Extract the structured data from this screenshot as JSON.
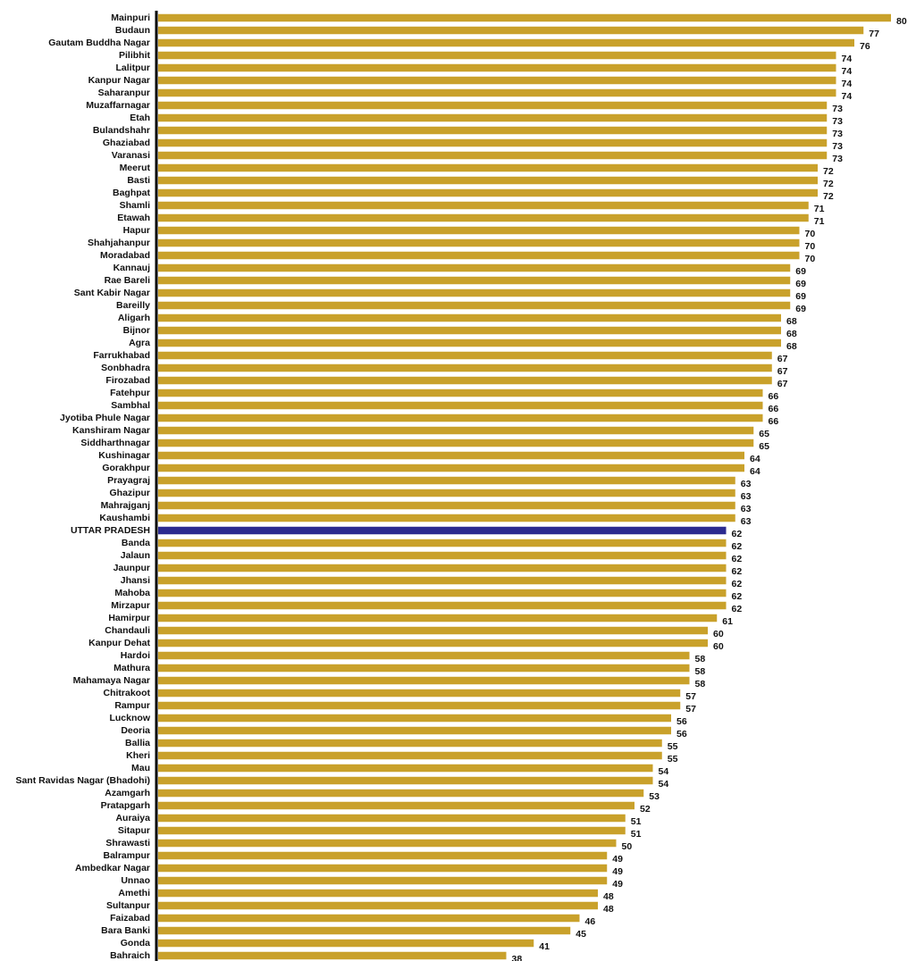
{
  "chart_data": {
    "type": "barh",
    "categories": [
      "Mainpuri",
      "Budaun",
      "Gautam Buddha Nagar",
      "Pilibhit",
      "Lalitpur",
      "Kanpur Nagar",
      "Saharanpur",
      "Muzaffarnagar",
      "Etah",
      "Bulandshahr",
      "Ghaziabad",
      "Varanasi",
      "Meerut",
      "Basti",
      "Baghpat",
      "Shamli",
      "Etawah",
      "Hapur",
      "Shahjahanpur",
      "Moradabad",
      "Kannauj",
      "Rae Bareli",
      "Sant Kabir Nagar",
      "Bareilly",
      "Aligarh",
      "Bijnor",
      "Agra",
      "Farrukhabad",
      "Sonbhadra",
      "Firozabad",
      "Fatehpur",
      "Sambhal",
      "Jyotiba Phule Nagar",
      "Kanshiram Nagar",
      "Siddharthnagar",
      "Kushinagar",
      "Gorakhpur",
      "Prayagraj",
      "Ghazipur",
      "Mahrajganj",
      "Kaushambi",
      "UTTAR PRADESH",
      "Banda",
      "Jalaun",
      "Jaunpur",
      "Jhansi",
      "Mahoba",
      "Mirzapur",
      "Hamirpur",
      "Chandauli",
      "Kanpur Dehat",
      "Hardoi",
      "Mathura",
      "Mahamaya Nagar",
      "Chitrakoot",
      "Rampur",
      "Lucknow",
      "Deoria",
      "Ballia",
      "Kheri",
      "Mau",
      "Sant Ravidas Nagar (Bhadohi)",
      "Azamgarh",
      "Pratapgarh",
      "Auraiya",
      "Sitapur",
      "Shrawasti",
      "Balrampur",
      "Ambedkar Nagar",
      "Unnao",
      "Amethi",
      "Sultanpur",
      "Faizabad",
      "Bara Banki",
      "Gonda",
      "Bahraich"
    ],
    "values": [
      80,
      77,
      76,
      74,
      74,
      74,
      74,
      73,
      73,
      73,
      73,
      73,
      72,
      72,
      72,
      71,
      71,
      70,
      70,
      70,
      69,
      69,
      69,
      69,
      68,
      68,
      68,
      67,
      67,
      67,
      66,
      66,
      66,
      65,
      65,
      64,
      64,
      63,
      63,
      63,
      63,
      62,
      62,
      62,
      62,
      62,
      62,
      62,
      61,
      60,
      60,
      58,
      58,
      58,
      57,
      57,
      56,
      56,
      55,
      55,
      54,
      54,
      53,
      52,
      51,
      51,
      50,
      49,
      49,
      49,
      48,
      48,
      46,
      45,
      41,
      38
    ],
    "colors": [
      "#c9a12b",
      "#c9a12b",
      "#c9a12b",
      "#c9a12b",
      "#c9a12b",
      "#c9a12b",
      "#c9a12b",
      "#c9a12b",
      "#c9a12b",
      "#c9a12b",
      "#c9a12b",
      "#c9a12b",
      "#c9a12b",
      "#c9a12b",
      "#c9a12b",
      "#c9a12b",
      "#c9a12b",
      "#c9a12b",
      "#c9a12b",
      "#c9a12b",
      "#c9a12b",
      "#c9a12b",
      "#c9a12b",
      "#c9a12b",
      "#c9a12b",
      "#c9a12b",
      "#c9a12b",
      "#c9a12b",
      "#c9a12b",
      "#c9a12b",
      "#c9a12b",
      "#c9a12b",
      "#c9a12b",
      "#c9a12b",
      "#c9a12b",
      "#c9a12b",
      "#c9a12b",
      "#c9a12b",
      "#c9a12b",
      "#c9a12b",
      "#c9a12b",
      "#2b2a8f",
      "#c9a12b",
      "#c9a12b",
      "#c9a12b",
      "#c9a12b",
      "#c9a12b",
      "#c9a12b",
      "#c9a12b",
      "#c9a12b",
      "#c9a12b",
      "#c9a12b",
      "#c9a12b",
      "#c9a12b",
      "#c9a12b",
      "#c9a12b",
      "#c9a12b",
      "#c9a12b",
      "#c9a12b",
      "#c9a12b",
      "#c9a12b",
      "#c9a12b",
      "#c9a12b",
      "#c9a12b",
      "#c9a12b",
      "#c9a12b",
      "#c9a12b",
      "#c9a12b",
      "#c9a12b",
      "#c9a12b",
      "#c9a12b",
      "#c9a12b",
      "#c9a12b",
      "#c9a12b",
      "#c9a12b",
      "#c9a12b"
    ],
    "xlim": [
      0,
      80
    ]
  }
}
